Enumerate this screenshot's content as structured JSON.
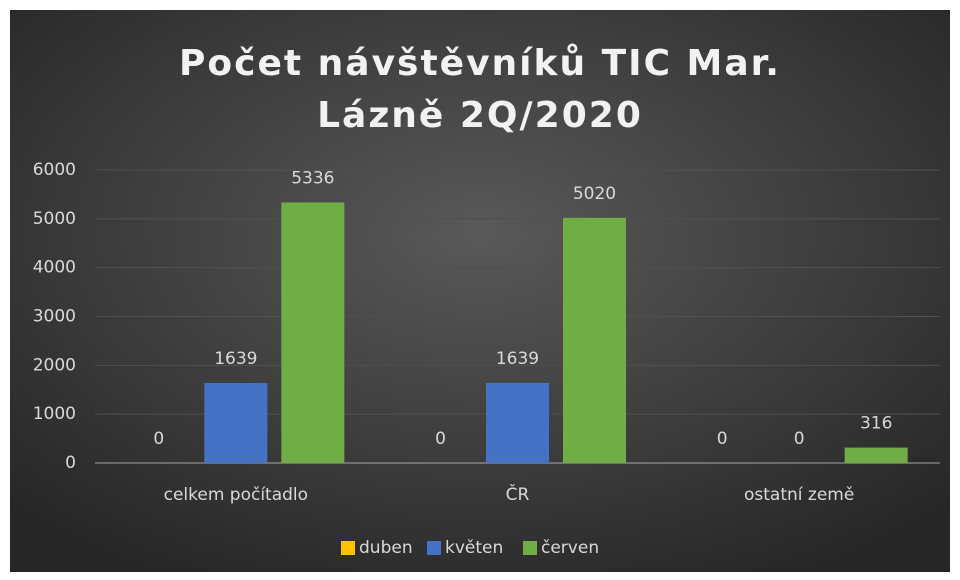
{
  "chart_data": {
    "type": "bar",
    "title": "Počet návštěvníků TIC Mar. Lázně 2Q/2020",
    "categories": [
      "celkem počítadlo",
      "ČR",
      "ostatní země"
    ],
    "series": [
      {
        "name": "duben",
        "color": "#ffc000",
        "values": [
          0,
          0,
          0
        ]
      },
      {
        "name": "květen",
        "color": "#4472c4",
        "values": [
          1639,
          1639,
          0
        ]
      },
      {
        "name": "červen",
        "color": "#70ad47",
        "values": [
          5336,
          5020,
          316
        ]
      }
    ],
    "ylim": [
      0,
      6000
    ],
    "yticks": [
      0,
      1000,
      2000,
      3000,
      4000,
      5000,
      6000
    ],
    "grid": true,
    "legend": "bottom"
  }
}
